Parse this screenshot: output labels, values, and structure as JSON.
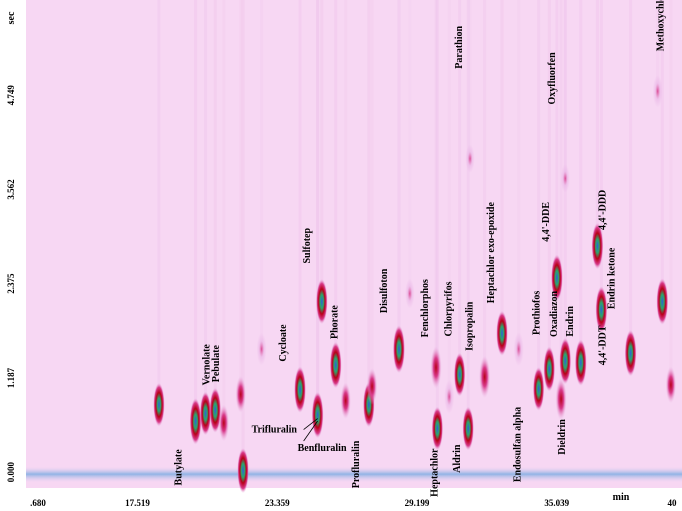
{
  "chart_data": {
    "type": "heatmap",
    "title": "",
    "xlabel": "min",
    "ylabel": "sec",
    "x_ticks": [
      ".680",
      "17.519",
      "23.359",
      "29.199",
      "35.039",
      "40"
    ],
    "y_ticks": [
      "0.000",
      "1.187",
      "2.375",
      "3.562",
      "4.749"
    ],
    "xlim": [
      11.68,
      40.0
    ],
    "ylim": [
      -0.2,
      5.95
    ],
    "background_color": "#f7d7f3",
    "baseline_color": "#6fa8e0",
    "colorscale": [
      "#e9b4e6",
      "#d83a8a",
      "#b80018",
      "#2aa86a",
      "#2f5fd8"
    ],
    "compounds": [
      {
        "name": "Butylate",
        "x": 19.0,
        "y": 0.64,
        "z": 0.95
      },
      {
        "name": "Vernolate",
        "x": 19.43,
        "y": 0.74,
        "z": 0.85
      },
      {
        "name": "Pebulate",
        "x": 19.85,
        "y": 0.78,
        "z": 0.9
      },
      {
        "name": "Cycloate",
        "x": 23.51,
        "y": 1.04,
        "z": 0.95
      },
      {
        "name": "Trifluralin",
        "x": 24.27,
        "y": 0.7,
        "z": 0.7
      },
      {
        "name": "Benfluralin",
        "x": 24.27,
        "y": 0.72,
        "z": 0.95
      },
      {
        "name": "Sulfotep",
        "x": 24.45,
        "y": 2.15,
        "z": 0.9
      },
      {
        "name": "Phorate",
        "x": 25.05,
        "y": 1.35,
        "z": 0.95
      },
      {
        "name": "Profluralin",
        "x": 26.48,
        "y": 0.85,
        "z": 0.9
      },
      {
        "name": "Disulfoton",
        "x": 27.78,
        "y": 1.55,
        "z": 1.0
      },
      {
        "name": "Fenchlorphos",
        "x": 29.38,
        "y": 1.32,
        "z": 0.8
      },
      {
        "name": "Heptachlor",
        "x": 29.44,
        "y": 0.55,
        "z": 0.85
      },
      {
        "name": "Chlorpyrifos",
        "x": 30.4,
        "y": 1.23,
        "z": 0.85
      },
      {
        "name": "Aldrin",
        "x": 30.77,
        "y": 0.55,
        "z": 0.85
      },
      {
        "name": "Isopropalin",
        "x": 31.48,
        "y": 1.2,
        "z": 0.8
      },
      {
        "name": "Parathion",
        "x": 30.85,
        "y": 3.95,
        "z": 0.3
      },
      {
        "name": "Heptachlor exo-epoxide",
        "x": 32.23,
        "y": 1.75,
        "z": 0.9
      },
      {
        "name": "Endosulfan alpha",
        "x": 33.81,
        "y": 1.05,
        "z": 0.85
      },
      {
        "name": "Prothiofos",
        "x": 34.27,
        "y": 1.3,
        "z": 0.9
      },
      {
        "name": "4,4'-DDE",
        "x": 34.6,
        "y": 2.45,
        "z": 0.95
      },
      {
        "name": "Dieldrin",
        "x": 34.78,
        "y": 0.92,
        "z": 0.8
      },
      {
        "name": "Oxadiazon",
        "x": 34.96,
        "y": 1.4,
        "z": 0.95
      },
      {
        "name": "Oxyfluorfen",
        "x": 34.96,
        "y": 3.7,
        "z": 0.3
      },
      {
        "name": "Endrin",
        "x": 35.63,
        "y": 1.38,
        "z": 0.95
      },
      {
        "name": "4,4'-DDD",
        "x": 36.35,
        "y": 2.85,
        "z": 0.95
      },
      {
        "name": "4,4'-DDD",
        "x": 36.52,
        "y": 2.05,
        "z": 0.95
      },
      {
        "name": "4,4'-DDT",
        "x": 37.78,
        "y": 1.5,
        "z": 0.95
      },
      {
        "name": "Endrin ketone",
        "x": 38.95,
        "y": 4.8,
        "z": 0.45
      },
      {
        "name": "Methoxychlor",
        "x": 39.15,
        "y": 2.15,
        "z": 0.95
      }
    ],
    "unlabeled_peaks": [
      {
        "x": 17.42,
        "y": 0.85,
        "z": 0.85
      },
      {
        "x": 20.22,
        "y": 0.62,
        "z": 0.6
      },
      {
        "x": 20.95,
        "y": 0.98,
        "z": 0.6
      },
      {
        "x": 21.05,
        "y": 0.02,
        "z": 0.9
      },
      {
        "x": 21.85,
        "y": 1.55,
        "z": 0.45
      },
      {
        "x": 25.48,
        "y": 0.9,
        "z": 0.6
      },
      {
        "x": 26.62,
        "y": 1.08,
        "z": 0.6
      },
      {
        "x": 28.25,
        "y": 2.25,
        "z": 0.35
      },
      {
        "x": 29.95,
        "y": 0.95,
        "z": 0.5
      },
      {
        "x": 32.95,
        "y": 1.55,
        "z": 0.5
      },
      {
        "x": 39.52,
        "y": 1.1,
        "z": 0.6
      }
    ]
  },
  "labels": [
    {
      "text": "Butylate",
      "rot": -90
    },
    {
      "text": "Vernolate",
      "rot": -90
    },
    {
      "text": "Pebulate",
      "rot": -90
    },
    {
      "text": "Cycloate",
      "rot": -90
    },
    {
      "text": "Trifluralin",
      "rot": 0
    },
    {
      "text": "Benfluralin",
      "rot": 0
    },
    {
      "text": "Sulfotep",
      "rot": -90
    },
    {
      "text": "Phorate",
      "rot": -90
    },
    {
      "text": "Profluralin",
      "rot": -90
    },
    {
      "text": "Disulfoton",
      "rot": -90
    },
    {
      "text": "Fenchlorphos",
      "rot": -90
    },
    {
      "text": "Heptachlor",
      "rot": -90
    },
    {
      "text": "Chlorpyrifos",
      "rot": -90
    },
    {
      "text": "Aldrin",
      "rot": -90
    },
    {
      "text": "Isopropalin",
      "rot": -90
    },
    {
      "text": "Parathion",
      "rot": -90
    },
    {
      "text": "Heptachlor exo-epoxide",
      "rot": -90
    },
    {
      "text": "Endosulfan alpha",
      "rot": -90
    },
    {
      "text": "Prothiofos",
      "rot": -90
    },
    {
      "text": "4,4'-DDE",
      "rot": -90
    },
    {
      "text": "Dieldrin",
      "rot": -90
    },
    {
      "text": "Oxadiazon",
      "rot": -90
    },
    {
      "text": "Oxyfluorfen",
      "rot": -90
    },
    {
      "text": "Endrin",
      "rot": -90
    },
    {
      "text": "4,4'-DDD",
      "rot": -90
    },
    {
      "text": "4,4'-DDT",
      "rot": -90
    },
    {
      "text": "Endrin ketone",
      "rot": -90
    },
    {
      "text": "Methoxychlor",
      "rot": -90
    }
  ]
}
